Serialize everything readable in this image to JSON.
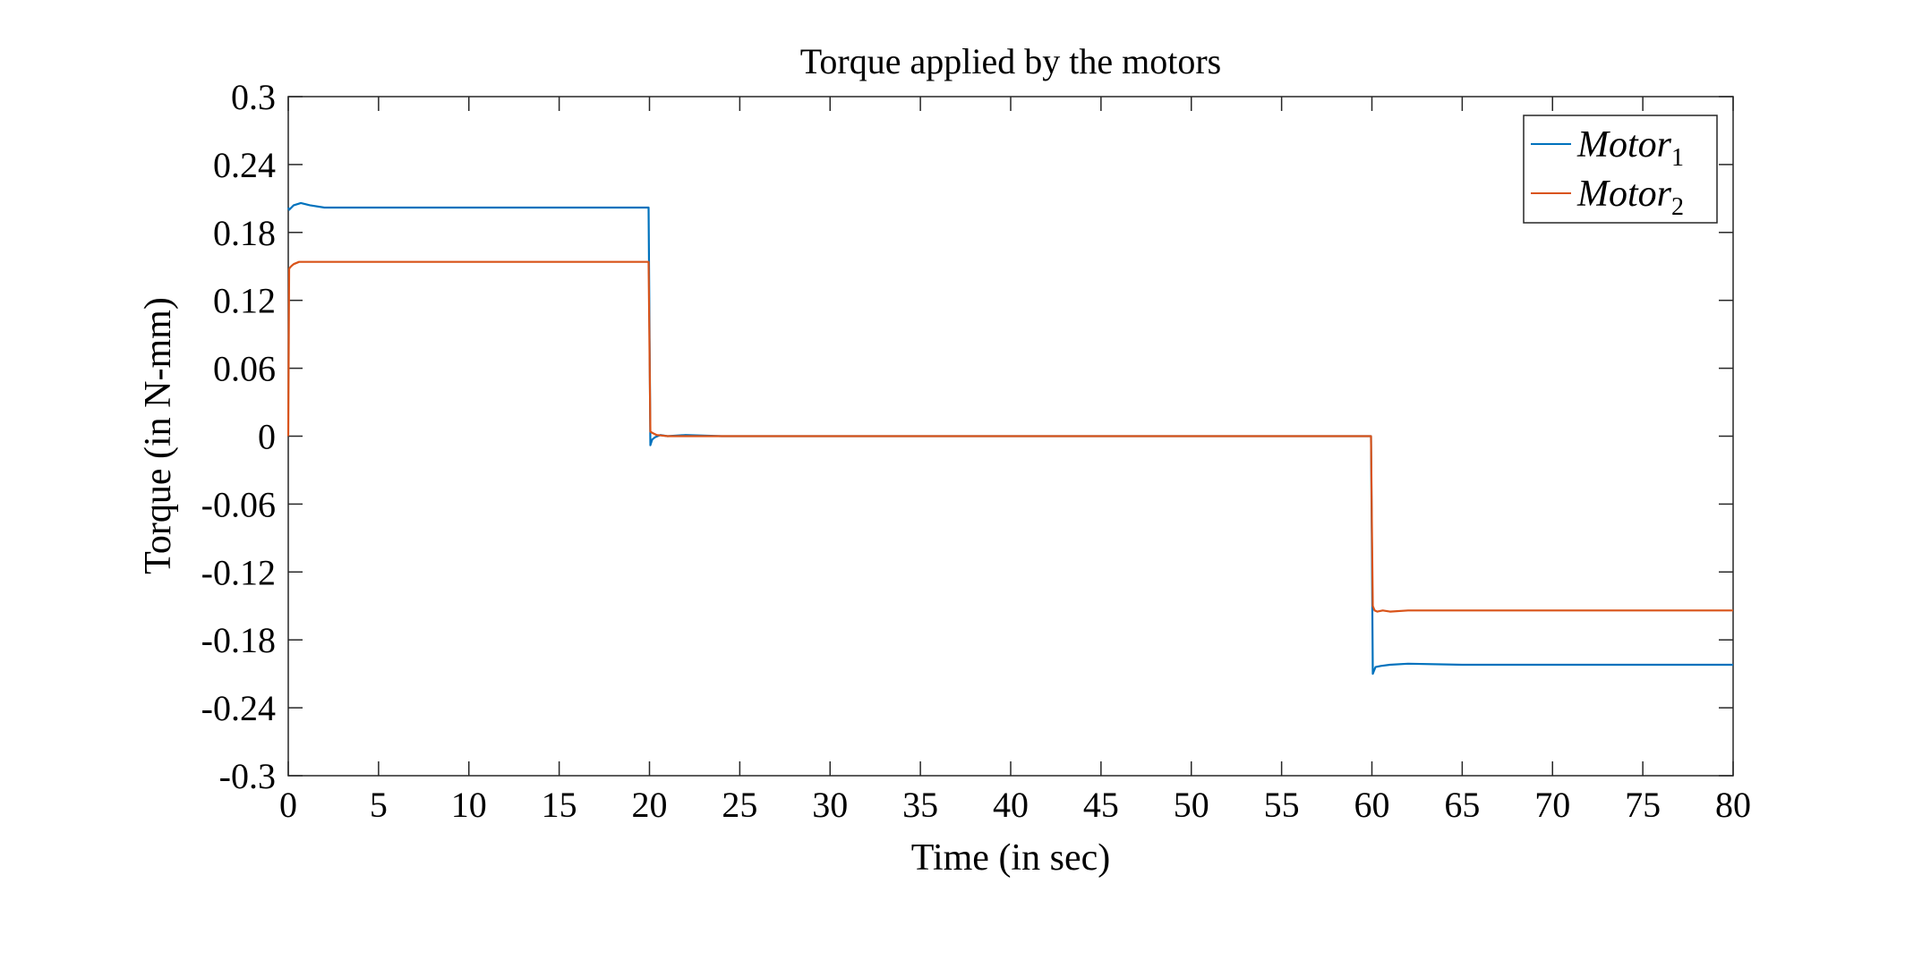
{
  "chart_data": {
    "type": "line",
    "title": "Torque applied by the motors",
    "xlabel": "Time (in sec)",
    "ylabel": "Torque (in N-mm)",
    "xlim": [
      0,
      80
    ],
    "ylim": [
      -0.3,
      0.3
    ],
    "xticks": [
      0,
      5,
      10,
      15,
      20,
      25,
      30,
      35,
      40,
      45,
      50,
      55,
      60,
      65,
      70,
      75,
      80
    ],
    "xtick_labels": [
      "0",
      "5",
      "10",
      "15",
      "20",
      "25",
      "30",
      "35",
      "40",
      "45",
      "50",
      "55",
      "60",
      "65",
      "70",
      "75",
      "80"
    ],
    "yticks": [
      0.3,
      0.24,
      0.18,
      0.12,
      0.06,
      0,
      -0.06,
      -0.12,
      -0.18,
      -0.24,
      -0.3
    ],
    "ytick_labels": [
      "0.3",
      "0.24",
      "0.18",
      "0.12",
      "0.06",
      "0",
      "-0.06",
      "-0.12",
      "-0.18",
      "-0.24",
      "-0.3"
    ],
    "grid": false,
    "legend_position": "top-right",
    "series": [
      {
        "name": "Motor",
        "name_subscript": "1",
        "color": "#0072BD",
        "x": [
          0,
          0.05,
          0.3,
          0.7,
          1.2,
          2,
          5,
          10,
          15,
          19.95,
          20.0,
          20.05,
          20.15,
          20.3,
          20.6,
          21,
          22,
          24,
          30,
          40,
          50,
          59.95,
          60.0,
          60.05,
          60.2,
          60.5,
          61,
          62,
          65,
          70,
          75,
          80
        ],
        "y": [
          0.202,
          0.2,
          0.204,
          0.206,
          0.204,
          0.202,
          0.202,
          0.202,
          0.202,
          0.202,
          0.1,
          -0.008,
          -0.003,
          -0.001,
          0.001,
          0.0,
          0.001,
          0.0,
          0.0,
          0.0,
          0.0,
          0.0,
          -0.1,
          -0.21,
          -0.204,
          -0.203,
          -0.202,
          -0.201,
          -0.202,
          -0.202,
          -0.202,
          -0.202
        ]
      },
      {
        "name": "Motor",
        "name_subscript": "2",
        "color": "#D95319",
        "x": [
          0,
          0.05,
          0.15,
          0.3,
          0.6,
          1,
          2,
          5,
          10,
          15,
          19.95,
          20.0,
          20.05,
          20.15,
          20.4,
          21,
          22,
          30,
          40,
          50,
          59.95,
          60.0,
          60.05,
          60.15,
          60.3,
          60.6,
          61,
          62,
          65,
          70,
          75,
          80
        ],
        "y": [
          0.0,
          0.148,
          0.15,
          0.152,
          0.154,
          0.154,
          0.154,
          0.154,
          0.154,
          0.154,
          0.154,
          0.08,
          0.004,
          0.003,
          0.001,
          0.0,
          0.0,
          0.0,
          0.0,
          0.0,
          0.0,
          -0.08,
          -0.15,
          -0.154,
          -0.155,
          -0.154,
          -0.155,
          -0.154,
          -0.154,
          -0.154,
          -0.154,
          -0.154
        ]
      }
    ]
  }
}
